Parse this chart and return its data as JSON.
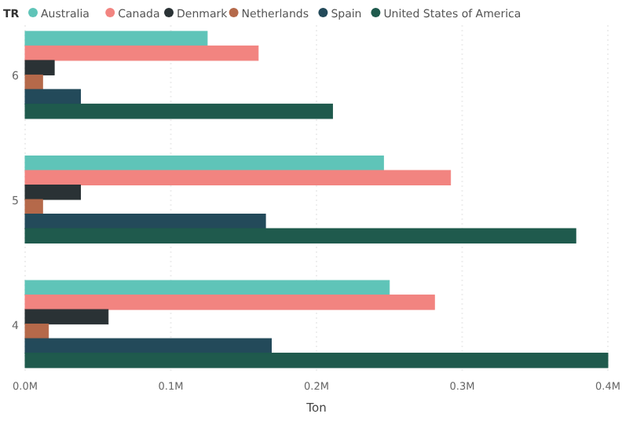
{
  "chart_data": {
    "type": "bar",
    "orientation": "horizontal",
    "xlabel": "Ton",
    "legend_title": "TR",
    "legend": "top left",
    "grid": "x",
    "categories": [
      "6",
      "5",
      "4"
    ],
    "xlim": [
      0,
      0.4
    ],
    "xticks": [
      {
        "value": 0,
        "label": "0.0M"
      },
      {
        "value": 0.1,
        "label": "0.1M"
      },
      {
        "value": 0.2,
        "label": "0.2M"
      },
      {
        "value": 0.3,
        "label": "0.3M"
      },
      {
        "value": 0.4,
        "label": "0.4M"
      }
    ],
    "series": [
      {
        "name": "Australia",
        "color": "#5fc4b8",
        "values": [
          0.125,
          0.246,
          0.25
        ]
      },
      {
        "name": "Canada",
        "color": "#f28480",
        "values": [
          0.16,
          0.292,
          0.281
        ]
      },
      {
        "name": "Denmark",
        "color": "#2a3235",
        "values": [
          0.02,
          0.038,
          0.057
        ]
      },
      {
        "name": "Netherlands",
        "color": "#b5694a",
        "values": [
          0.012,
          0.012,
          0.016
        ]
      },
      {
        "name": "Spain",
        "color": "#234a5a",
        "values": [
          0.038,
          0.165,
          0.169
        ]
      },
      {
        "name": "United States of America",
        "color": "#1f5a4d",
        "values": [
          0.211,
          0.378,
          0.4
        ]
      }
    ]
  }
}
